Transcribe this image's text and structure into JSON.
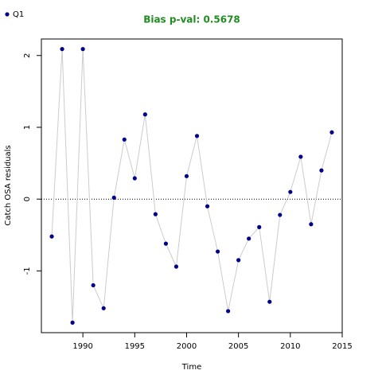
{
  "chart_data": {
    "type": "scatter",
    "title": "Bias p-val: 0.5678",
    "title_color": "#228B22",
    "x_label": "Time",
    "y_label": "Catch OSA residuals",
    "x": [
      1987,
      1988,
      1989,
      1990,
      1991,
      1992,
      1993,
      1994,
      1995,
      1996,
      1997,
      1998,
      1999,
      2000,
      2001,
      2002,
      2003,
      2004,
      2005,
      2006,
      2007,
      2008,
      2009,
      2010,
      2011,
      2012,
      2013,
      2014
    ],
    "series": [
      {
        "name": "Q1",
        "color": "#00008B",
        "line_color": "#cccccc",
        "values": [
          -0.52,
          2.09,
          -1.72,
          2.09,
          -1.2,
          -1.52,
          0.02,
          0.83,
          0.29,
          1.18,
          -0.21,
          -0.62,
          -0.94,
          0.32,
          0.88,
          -0.1,
          -0.73,
          -1.56,
          -0.85,
          -0.55,
          -0.39,
          -1.43,
          -0.22,
          0.1,
          0.59,
          -0.35,
          0.4,
          0.93
        ]
      }
    ],
    "xlim": [
      1986,
      2015
    ],
    "ylim": [
      -1.86,
      2.23
    ],
    "xticks": [
      1990,
      1995,
      2000,
      2005,
      2010,
      2015
    ],
    "yticks": [
      -1,
      0,
      1,
      2
    ],
    "hline": 0,
    "legend": "top-left"
  }
}
